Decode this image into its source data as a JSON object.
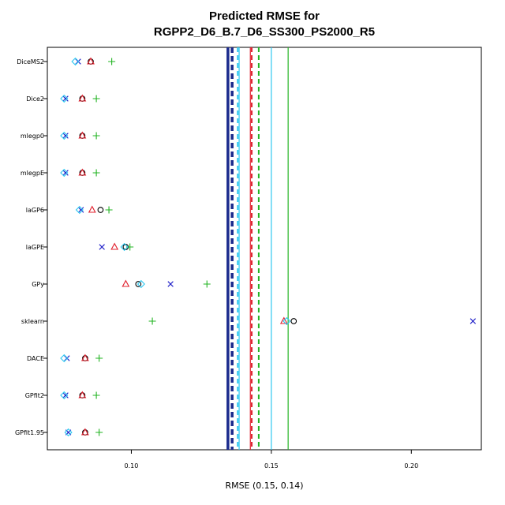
{
  "chart_data": {
    "type": "scatter",
    "title_line1": "Predicted RMSE for",
    "title_line2": "RGPP2_D6_B.7_D6_SS300_PS2000_R5",
    "xlabel": "RMSE (0.15, 0.14)",
    "xlim": [
      0.07,
      0.225
    ],
    "x_ticks": [
      0.1,
      0.15,
      0.2
    ],
    "x_tick_labels": [
      "0.10",
      "0.15",
      "0.20"
    ],
    "categories": [
      "DiceMS2",
      "Dice2",
      "mlegp0",
      "mlegpE",
      "laGP6",
      "laGPE",
      "GPy",
      "sklearn",
      "DACE",
      "GPfit2",
      "GPfit1.95"
    ],
    "series": [
      {
        "marker": "circle",
        "color": "#000000",
        "values": [
          0.0855,
          0.0825,
          0.0825,
          0.0825,
          0.089,
          0.098,
          0.1025,
          0.158,
          0.0835,
          0.0825,
          0.0835
        ]
      },
      {
        "marker": "triangle",
        "color": "#e0212e",
        "values": [
          0.0855,
          0.0825,
          0.0825,
          0.0825,
          0.086,
          0.094,
          0.098,
          0.1545,
          0.0835,
          0.0825,
          0.0835
        ]
      },
      {
        "marker": "plus",
        "color": "#22b422",
        "values": [
          0.093,
          0.0875,
          0.0875,
          0.0875,
          0.092,
          0.0995,
          0.127,
          0.1075,
          0.0885,
          0.0875,
          0.0885
        ]
      },
      {
        "marker": "x",
        "color": "#1f1fc8",
        "values": [
          0.081,
          0.0765,
          0.0765,
          0.0765,
          0.082,
          0.0895,
          0.114,
          0.222,
          0.077,
          0.0765,
          0.0775
        ]
      },
      {
        "marker": "diamond",
        "color": "#2ec8f0",
        "values": [
          0.08,
          0.076,
          0.076,
          0.076,
          0.0815,
          0.0975,
          0.1035,
          0.1555,
          0.076,
          0.076,
          0.0775
        ]
      }
    ],
    "vlines": [
      {
        "x": 0.136,
        "color": "#1a2a8c",
        "style": "dashed",
        "weight": "heavy"
      },
      {
        "x": 0.138,
        "color": "#2ec8f0",
        "style": "dashed",
        "weight": "medium"
      },
      {
        "x": 0.143,
        "color": "#e0212e",
        "style": "dashed",
        "weight": "medium"
      },
      {
        "x": 0.1455,
        "color": "#22b422",
        "style": "dashed",
        "weight": "medium"
      },
      {
        "x": 0.1345,
        "color": "#1a2a8c",
        "style": "solid",
        "weight": "heavy"
      },
      {
        "x": 0.1385,
        "color": "#2ec8f0",
        "style": "solid",
        "weight": "thin"
      },
      {
        "x": 0.1425,
        "color": "#e0212e",
        "style": "solid",
        "weight": "thin"
      },
      {
        "x": 0.15,
        "color": "#2ec8f0",
        "style": "solid",
        "weight": "thin"
      },
      {
        "x": 0.156,
        "color": "#22b422",
        "style": "solid",
        "weight": "thin"
      }
    ],
    "grid": false,
    "legend": "none"
  }
}
